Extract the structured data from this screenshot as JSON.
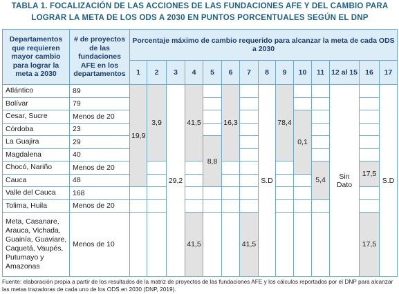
{
  "title": "TABLA 1. FOCALIZACIÓN DE LAS ACCIONES DE LAS FUNDACIONES AFE Y DEL CAMBIO PARA LOGRAR LA META DE LOS ODS A 2030 EN PUNTOS PORCENTUALES SEGÚN EL DNP",
  "table": {
    "header": {
      "department": "Departamentos que requieren mayor cambio para lograr la meta a 2030",
      "projects": "# de proyectos de las fundaciones AFE en los departamentos",
      "group": "Porcentaje máximo de cambio requerido para alcanzar la meta de cada ODS a 2030",
      "columns": [
        "1",
        "2",
        "3",
        "4",
        "5",
        "6",
        "7",
        "8",
        "9",
        "10",
        "11",
        "12 al 15",
        "16",
        "17"
      ]
    },
    "rows": [
      {
        "department": "Atlántico",
        "projects": "89"
      },
      {
        "department": "Bolívar",
        "projects": "79"
      },
      {
        "department": "Cesar, Sucre",
        "projects": "Menos de 20"
      },
      {
        "department": "Córdoba",
        "projects": "23"
      },
      {
        "department": "La Guajira",
        "projects": "29"
      },
      {
        "department": "Magdalena",
        "projects": "40"
      },
      {
        "department": "Chocó, Nariño",
        "projects": "Menos de 20"
      },
      {
        "department": "Cauca",
        "projects": "48"
      },
      {
        "department": "Valle del Cauca",
        "projects": "168"
      },
      {
        "department": "Tolima, Huila",
        "projects": "Menos de 20"
      },
      {
        "department": "Meta, Casanare, Arauca, Vichada, Guainía, Guaviare, Caquetá, Vaupés, Putumayo y Amazonas",
        "projects": "Menos de 10"
      }
    ],
    "cells": [
      [
        "19,9"
      ],
      [
        "3,9"
      ],
      [
        "29,2"
      ],
      [
        "41,5",
        "41,5"
      ],
      [
        "8,8"
      ],
      [
        "16,3"
      ],
      [
        "41,5"
      ],
      [
        "S.D"
      ],
      [
        "78,4"
      ],
      [
        "0,1"
      ],
      [
        "5,4"
      ],
      [
        "Sin Dato"
      ],
      [
        "17,5",
        "17,5"
      ],
      [
        "S.D"
      ]
    ]
  },
  "source": "Fuente: elaboración propia a partir de los resultados de la matriz de proyectos de las fundaciones AFE y los cálculos reportados por el DNP para alcanzar las metas trazadoras de cada uno de los ODS en 2030 (DNP, 2019)."
}
